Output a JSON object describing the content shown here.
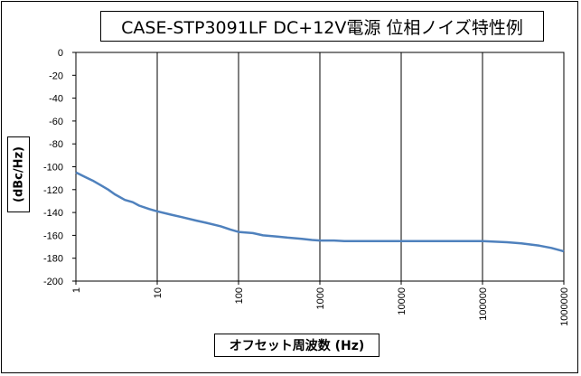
{
  "chart_data": {
    "type": "line",
    "title": "CASE-STP3091LF  DC+12V電源 位相ノイズ特性例",
    "xlabel": "オフセット周波数 (Hz)",
    "ylabel": "(dBc/Hz)",
    "x_scale": "log",
    "xlim": [
      1,
      1000000
    ],
    "ylim": [
      -200,
      0
    ],
    "x_ticks": [
      "1",
      "10",
      "100",
      "1000",
      "10000",
      "100000",
      "1000000"
    ],
    "y_ticks": [
      "0",
      "-20",
      "-40",
      "-60",
      "-80",
      "-100",
      "-120",
      "-140",
      "-160",
      "-180",
      "-200"
    ],
    "grid": {
      "vertical": true,
      "horizontal": false
    },
    "legend": "none",
    "line_color": "#4F81BD",
    "series": [
      {
        "x": [
          1,
          1.3,
          1.6,
          2,
          2.5,
          3,
          4,
          5,
          6,
          8,
          10,
          15,
          20,
          30,
          40,
          60,
          80,
          100,
          150,
          200,
          300,
          400,
          600,
          800,
          1000,
          1500,
          2000,
          3000,
          5000,
          10000,
          30000,
          100000,
          200000,
          300000,
          500000,
          700000,
          1000000
        ],
        "y": [
          -105,
          -109,
          -112,
          -116,
          -120,
          -124,
          -129,
          -131,
          -134,
          -137,
          -139,
          -142,
          -144,
          -147,
          -149,
          -152,
          -155,
          -157,
          -158,
          -160,
          -161,
          -162,
          -163,
          -164,
          -164.5,
          -164.5,
          -165,
          -165,
          -165,
          -165,
          -165,
          -165,
          -166,
          -167,
          -169,
          -171,
          -174
        ]
      }
    ]
  }
}
